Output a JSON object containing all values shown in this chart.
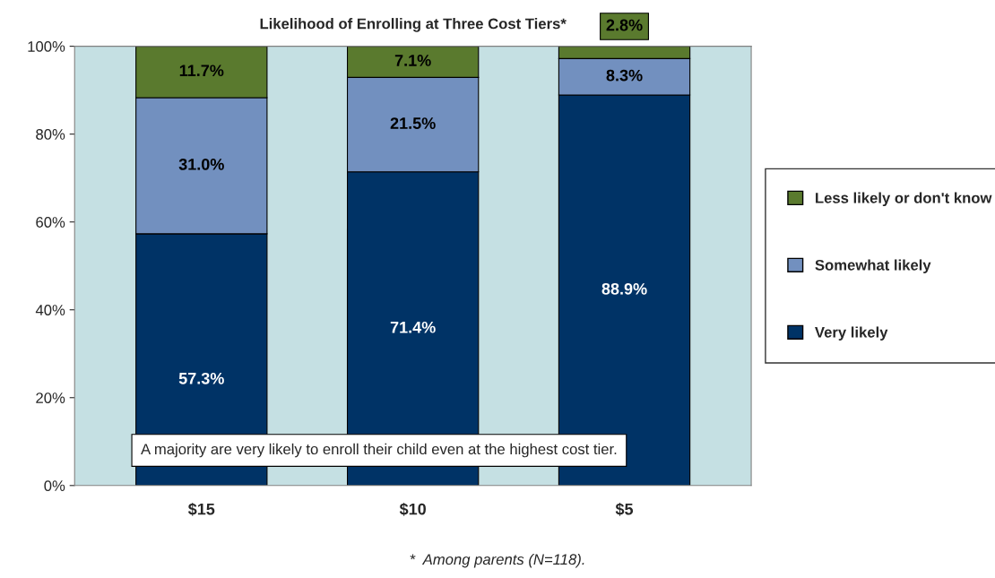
{
  "chart_data": {
    "type": "bar",
    "title": "Likelihood of Enrolling at Three Cost Tiers*",
    "categories": [
      "$15",
      "$10",
      "$5"
    ],
    "stacked": true,
    "series": [
      {
        "name": "Very likely",
        "color": "#003366",
        "values": [
          57.3,
          71.4,
          88.9
        ],
        "value_labels": [
          "57.3%",
          "71.4%",
          "88.9%"
        ]
      },
      {
        "name": "Somewhat likely",
        "color": "#7290bf",
        "values": [
          31.0,
          21.5,
          8.3
        ],
        "value_labels": [
          "31.0%",
          "21.5%",
          "8.3%"
        ]
      },
      {
        "name": "Less likely or don't know",
        "color": "#5a7a2e",
        "values": [
          11.7,
          7.1,
          2.8
        ],
        "value_labels": [
          "11.7%",
          "7.1%",
          "2.8%"
        ]
      }
    ],
    "ylim": [
      0,
      100
    ],
    "yticks": [
      {
        "value": 0,
        "label": "0%"
      },
      {
        "value": 20,
        "label": "20%"
      },
      {
        "value": 40,
        "label": "40%"
      },
      {
        "value": 60,
        "label": "60%"
      },
      {
        "value": 80,
        "label": "80%"
      },
      {
        "value": 100,
        "label": "100%"
      }
    ],
    "grid": false,
    "legend": "right",
    "annotations": [
      "A majority are very likely to enroll their child even at the highest cost tier.",
      "*  Among parents (N=118)."
    ]
  }
}
